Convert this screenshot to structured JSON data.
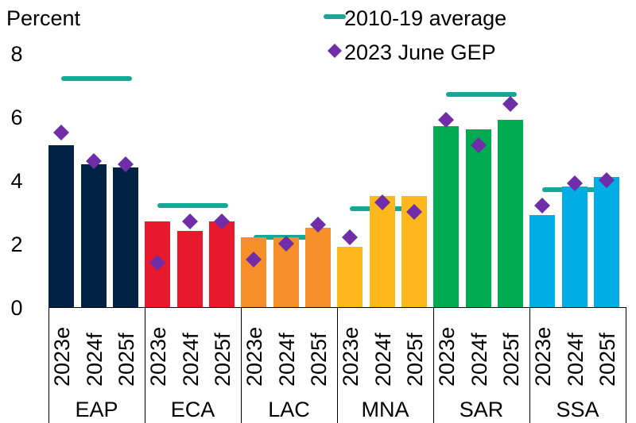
{
  "chart_data": {
    "type": "bar",
    "title": "",
    "ylabel": "Percent",
    "xlabel": "",
    "ylim": [
      0,
      8
    ],
    "yticks": [
      0,
      2,
      4,
      6,
      8
    ],
    "grid": false,
    "legend_position": "top-right",
    "legend": [
      {
        "name": "2010-19 average",
        "marker": "line",
        "color": "#1aa697"
      },
      {
        "name": "2023 June GEP",
        "marker": "diamond",
        "color": "#6f2da8"
      }
    ],
    "sub_categories": [
      "2023e",
      "2024f",
      "2025f"
    ],
    "groups": [
      {
        "name": "EAP",
        "color": "#002345",
        "values": [
          5.1,
          4.5,
          4.4
        ],
        "june_gep": [
          5.5,
          4.6,
          4.5
        ],
        "avg_2010_19": 7.2
      },
      {
        "name": "ECA",
        "color": "#e8192c",
        "values": [
          2.7,
          2.4,
          2.7
        ],
        "june_gep": [
          1.4,
          2.7,
          2.7
        ],
        "avg_2010_19": 3.2
      },
      {
        "name": "LAC",
        "color": "#f68f2a",
        "values": [
          2.2,
          2.2,
          2.5
        ],
        "june_gep": [
          1.5,
          2.0,
          2.6
        ],
        "avg_2010_19": 2.2
      },
      {
        "name": "MNA",
        "color": "#fdb71a",
        "values": [
          1.9,
          3.5,
          3.5
        ],
        "june_gep": [
          2.2,
          3.3,
          3.0
        ],
        "avg_2010_19": 3.1
      },
      {
        "name": "SAR",
        "color": "#00ab51",
        "values": [
          5.7,
          5.6,
          5.9
        ],
        "june_gep": [
          5.9,
          5.1,
          6.4
        ],
        "avg_2010_19": 6.7
      },
      {
        "name": "SSA",
        "color": "#00ade4",
        "values": [
          2.9,
          3.8,
          4.1
        ],
        "june_gep": [
          3.2,
          3.9,
          4.0
        ],
        "avg_2010_19": 3.7
      }
    ]
  }
}
